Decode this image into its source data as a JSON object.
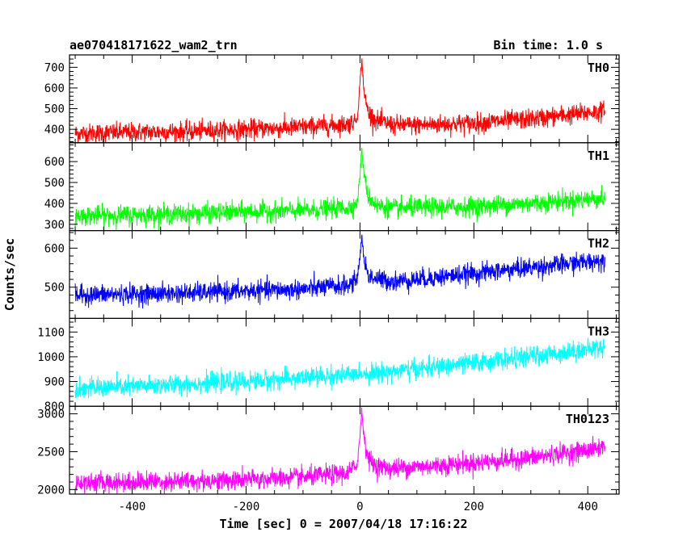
{
  "header": {
    "left_title": "ae070418171622_wam2_trn",
    "right_title": "Bin time: 1.0 s"
  },
  "chart_data": {
    "type": "line",
    "title": "ae070418171622_wam2_trn",
    "subtitle": "Bin time: 1.0 s",
    "xlabel": "Time [sec] 0 = 2007/04/18 17:16:22",
    "ylabel": "Counts/sec",
    "xlim": [
      -510,
      455
    ],
    "x_range_data": [
      -500,
      430
    ],
    "xticks": [
      -400,
      -200,
      0,
      200,
      400
    ],
    "grid": false,
    "panels": [
      {
        "name": "TH0",
        "color": "#ff0000",
        "ylim": [
          335,
          760
        ],
        "yticks": [
          400,
          500,
          600,
          700
        ],
        "x": [
          -500,
          -400,
          -300,
          -200,
          -100,
          -20,
          -5,
          0,
          3,
          8,
          15,
          30,
          60,
          100,
          200,
          300,
          400,
          430
        ],
        "y": [
          380,
          385,
          390,
          400,
          410,
          425,
          450,
          620,
          740,
          560,
          480,
          440,
          420,
          420,
          430,
          450,
          480,
          490
        ]
      },
      {
        "name": "TH1",
        "color": "#00ff00",
        "ylim": [
          270,
          690
        ],
        "yticks": [
          300,
          400,
          500,
          600
        ],
        "x": [
          -500,
          -400,
          -300,
          -200,
          -100,
          -20,
          -5,
          0,
          3,
          8,
          15,
          30,
          60,
          100,
          200,
          300,
          400,
          430
        ],
        "y": [
          340,
          345,
          350,
          360,
          365,
          380,
          400,
          530,
          660,
          520,
          430,
          390,
          375,
          380,
          385,
          400,
          420,
          425
        ]
      },
      {
        "name": "TH2",
        "color": "#0000ff",
        "ylim": [
          420,
          645
        ],
        "yticks": [
          500,
          600
        ],
        "x": [
          -500,
          -400,
          -300,
          -200,
          -100,
          -20,
          -5,
          0,
          3,
          8,
          15,
          30,
          60,
          100,
          200,
          300,
          400,
          430
        ],
        "y": [
          480,
          482,
          485,
          490,
          495,
          505,
          520,
          580,
          630,
          560,
          530,
          520,
          515,
          520,
          535,
          550,
          565,
          570
        ]
      },
      {
        "name": "TH3",
        "color": "#00ffff",
        "ylim": [
          800,
          1155
        ],
        "yticks": [
          800,
          900,
          1000,
          1100
        ],
        "x": [
          -500,
          -400,
          -300,
          -200,
          -100,
          0,
          100,
          200,
          300,
          400,
          430
        ],
        "y": [
          870,
          880,
          890,
          900,
          915,
          930,
          950,
          975,
          1000,
          1030,
          1040
        ]
      },
      {
        "name": "TH0123",
        "color": "#ff00ff",
        "ylim": [
          1940,
          3100
        ],
        "yticks": [
          2000,
          2500,
          3000
        ],
        "x": [
          -500,
          -400,
          -300,
          -200,
          -100,
          -20,
          -5,
          0,
          3,
          8,
          15,
          30,
          60,
          100,
          200,
          300,
          400,
          430
        ],
        "y": [
          2090,
          2100,
          2110,
          2130,
          2160,
          2220,
          2330,
          2700,
          3050,
          2650,
          2400,
          2300,
          2280,
          2300,
          2350,
          2420,
          2520,
          2570
        ]
      }
    ]
  }
}
